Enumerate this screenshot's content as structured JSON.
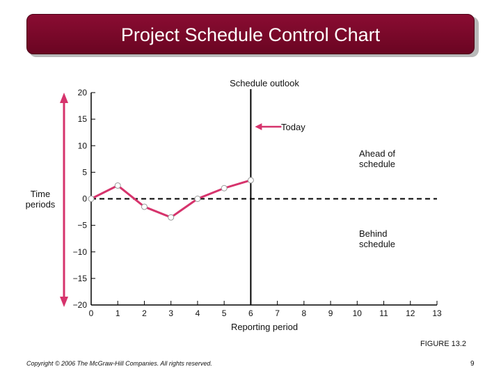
{
  "slide": {
    "title": "Project Schedule Control Chart",
    "figure_label": "FIGURE 13.2",
    "copyright": "Copyright © 2006 The McGraw-Hill Companies. All rights reserved.",
    "page_number": "9"
  },
  "colors": {
    "title_bar": "#7a0829",
    "series": "#d6336c",
    "axis": "#000000"
  },
  "chart_data": {
    "type": "line",
    "title": "Schedule outlook",
    "xlabel": "Reporting period",
    "ylabel": "Time periods",
    "xlim": [
      0,
      13
    ],
    "ylim": [
      -20,
      20
    ],
    "x_ticks": [
      0,
      1,
      2,
      3,
      4,
      5,
      6,
      7,
      8,
      9,
      10,
      11,
      12,
      13
    ],
    "y_ticks": [
      20,
      15,
      10,
      5,
      0,
      -5,
      -10,
      -15,
      -20
    ],
    "y_tick_labels": [
      "20",
      "15",
      "10",
      "5",
      "0",
      "−5",
      "−10",
      "−15",
      "−20"
    ],
    "series": [
      {
        "x": [
          0,
          1,
          2,
          3,
          4,
          5,
          6
        ],
        "values": [
          0,
          2.5,
          -1.5,
          -3.5,
          0,
          2,
          3.5
        ]
      }
    ],
    "today_line_x": 6,
    "baseline_y": 0,
    "annotations": {
      "today": "Today",
      "ahead": [
        "Ahead of",
        "schedule"
      ],
      "behind": [
        "Behind",
        "schedule"
      ]
    },
    "grid": false
  }
}
